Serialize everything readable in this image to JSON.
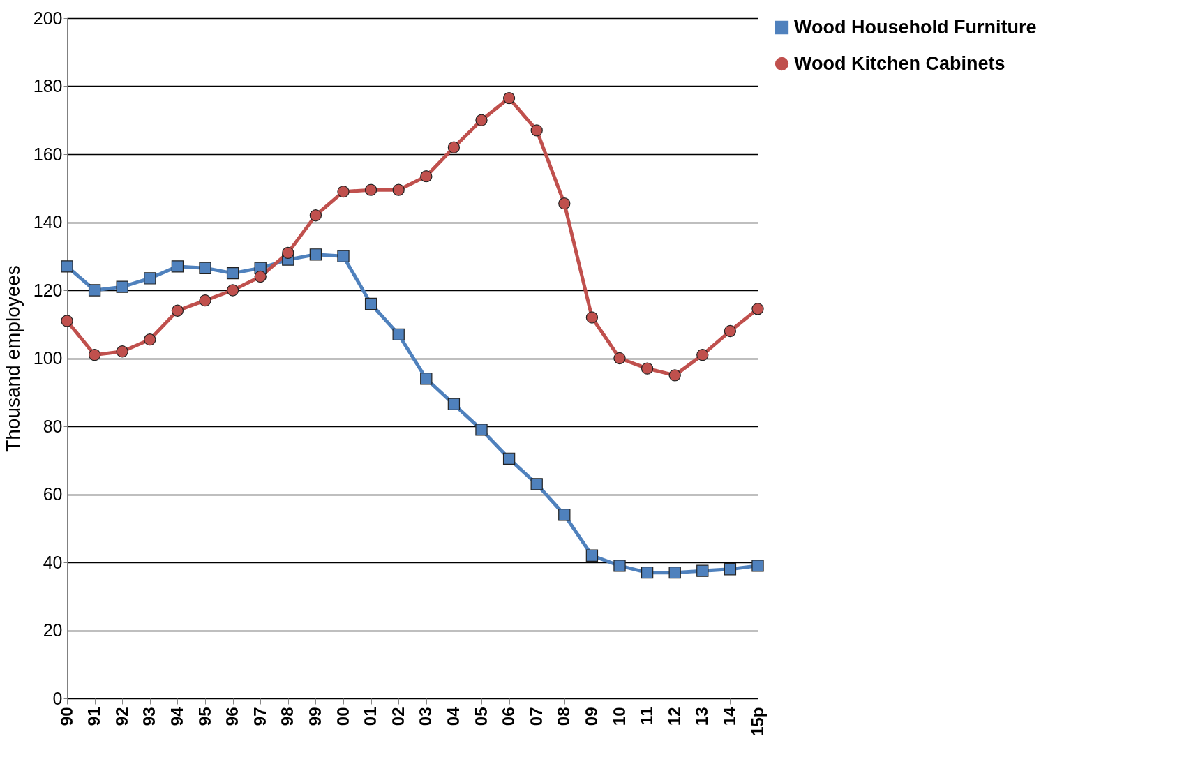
{
  "chart_data": {
    "type": "line",
    "ylabel": "Thousand employees",
    "categories": [
      "90",
      "91",
      "92",
      "93",
      "94",
      "95",
      "96",
      "97",
      "98",
      "99",
      "00",
      "01",
      "02",
      "03",
      "04",
      "05",
      "06",
      "07",
      "08",
      "09",
      "10",
      "11",
      "12",
      "13",
      "14",
      "15p"
    ],
    "series": [
      {
        "name": "Wood Household Furniture",
        "color": "#4f81bd",
        "marker": "square",
        "values": [
          127,
          120,
          121,
          123.5,
          127,
          126.5,
          125,
          126.5,
          129,
          130.5,
          130,
          116,
          107,
          94,
          86.5,
          79,
          70.5,
          63,
          54,
          42,
          39,
          37,
          37,
          37.5,
          38,
          39
        ]
      },
      {
        "name": "Wood Kitchen Cabinets",
        "color": "#c0504d",
        "marker": "circle",
        "values": [
          111,
          101,
          102,
          105.5,
          114,
          117,
          120,
          124,
          131,
          142,
          149,
          149.5,
          149.5,
          153.5,
          162,
          170,
          176.5,
          167,
          145.5,
          112,
          100,
          97,
          95,
          101,
          108,
          114.5
        ]
      }
    ],
    "ylim": [
      0,
      200
    ],
    "yticks": [
      0,
      20,
      40,
      60,
      80,
      100,
      120,
      140,
      160,
      180,
      200
    ],
    "grid": "y",
    "legend": "right",
    "line_style": "solid"
  }
}
